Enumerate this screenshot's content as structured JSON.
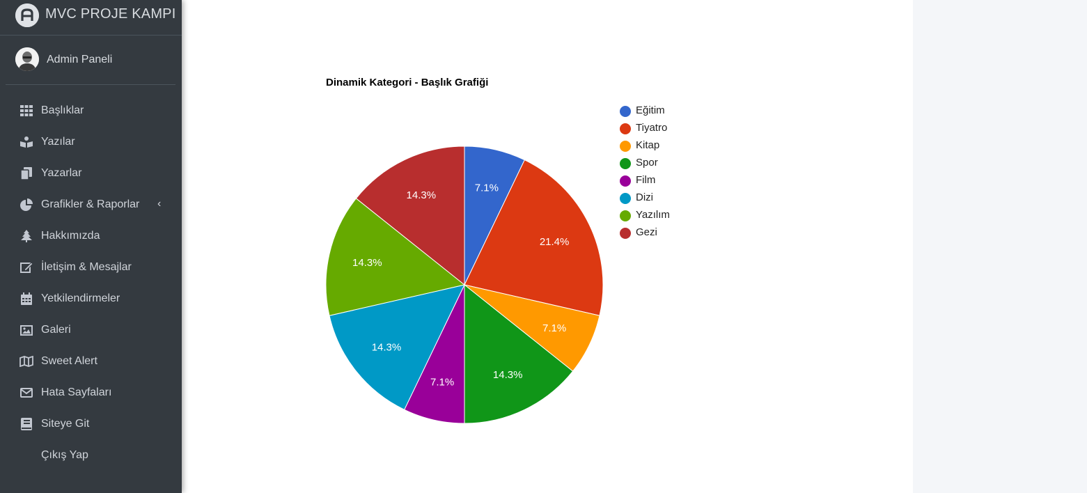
{
  "brand": {
    "name": "MVC PROJE KAMPI",
    "logo_icon": "letter-a-logo-icon"
  },
  "user": {
    "name": "Admin Paneli",
    "avatar_icon": "user-avatar-icon"
  },
  "sidebar": {
    "items": [
      {
        "label": "Başlıklar",
        "icon": "grid-icon"
      },
      {
        "label": "Yazılar",
        "icon": "reader-icon"
      },
      {
        "label": "Yazarlar",
        "icon": "copy-icon"
      },
      {
        "label": "Grafikler & Raporlar",
        "icon": "pie-chart-icon",
        "has_submenu": true
      },
      {
        "label": "Hakkımızda",
        "icon": "tree-icon"
      },
      {
        "label": "İletişim & Mesajlar",
        "icon": "edit-icon"
      },
      {
        "label": "Yetkilendirmeler",
        "icon": "calendar-icon"
      },
      {
        "label": "Galeri",
        "icon": "image-icon"
      },
      {
        "label": "Sweet Alert",
        "icon": "map-icon"
      },
      {
        "label": "Hata Sayfaları",
        "icon": "envelope-icon"
      },
      {
        "label": "Siteye Git",
        "icon": "book-icon"
      },
      {
        "label": "Çıkış Yap",
        "icon": ""
      }
    ],
    "submenu_arrow": "‹"
  },
  "chart_data": {
    "type": "pie",
    "title": "Dinamik Kategori - Başlık Grafiği",
    "legend_position": "right",
    "categories": [
      "Eğitim",
      "Tiyatro",
      "Kitap",
      "Spor",
      "Film",
      "Dizi",
      "Yazılım",
      "Gezi"
    ],
    "values": [
      1,
      3,
      1,
      2,
      1,
      2,
      2,
      2
    ],
    "labels": [
      "7.1%",
      "21.4%",
      "7.1%",
      "14.3%",
      "7.1%",
      "14.3%",
      "14.3%",
      "14.3%"
    ],
    "colors": [
      "#3366cc",
      "#dc3912",
      "#ff9900",
      "#109618",
      "#990099",
      "#0099c6",
      "#66aa00",
      "#b82e2e"
    ]
  }
}
